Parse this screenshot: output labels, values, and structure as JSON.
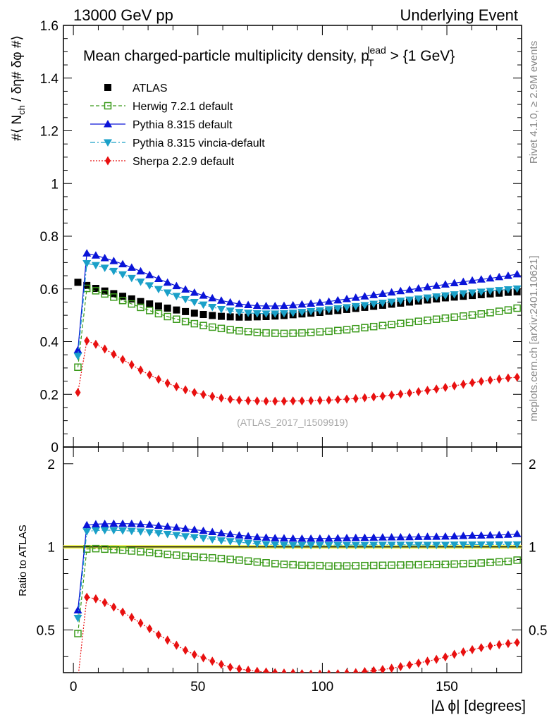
{
  "header": {
    "left": "13000 GeV pp",
    "right": "Underlying Event"
  },
  "side_labels": {
    "rivet": "Rivet 4.1.0, ≥ 2.9M events",
    "mcplots": "mcplots.cern.ch [arXiv:2401.10621]"
  },
  "colors": {
    "atlas": "#000000",
    "herwig": "#3a9a1a",
    "pythia": "#0a14d8",
    "vincia": "#1aa0c8",
    "sherpa": "#e81010",
    "ratio_band": "#f0f55a"
  },
  "chart_data": [
    {
      "id": "main",
      "type": "line",
      "title": "Mean charged-particle multiplicity density, p_T^lead > {1 GeV}",
      "title_parts": {
        "main": "Mean charged-particle multiplicity density, p",
        "sup": "lead",
        "sub": "T",
        "tail": " > {1 GeV}"
      },
      "ylabel": "#⟨ N_ch / δη# δφ #⟩",
      "ylabel_parts": {
        "a": "#⟨ N",
        "sub": "ch",
        "b": " / δη# δφ #⟩"
      },
      "xlabel": "",
      "ylim": [
        0,
        1.6
      ],
      "xlim": [
        -4,
        180
      ],
      "yticks": [
        0,
        0.2,
        0.4,
        0.6,
        0.8,
        1,
        1.2,
        1.4,
        1.6
      ],
      "ytick_labels": [
        "0",
        "0.2",
        "0.4",
        "0.6",
        "0.8",
        "1",
        "1.2",
        "1.4",
        "1.6"
      ],
      "watermark": "(ATLAS_2017_I1509919)",
      "legend_position": "top-left",
      "x": [
        1.8,
        5.4,
        9,
        12.6,
        16.2,
        19.8,
        23.4,
        27,
        30.6,
        34.2,
        37.8,
        41.4,
        45,
        48.6,
        52.2,
        55.8,
        59.4,
        63,
        66.6,
        70.2,
        73.8,
        77.4,
        81,
        84.6,
        88.2,
        91.8,
        95.4,
        99,
        102.6,
        106.2,
        109.8,
        113.4,
        117,
        120.6,
        124.2,
        127.8,
        131.4,
        135,
        138.6,
        142.2,
        145.8,
        149.4,
        153,
        156.6,
        160.2,
        163.8,
        167.4,
        171,
        174.6,
        178.2
      ],
      "series": [
        {
          "name": "ATLAS",
          "key": "atlas",
          "marker": "square-filled",
          "line": "none",
          "values": [
            0.625,
            0.613,
            0.602,
            0.592,
            0.582,
            0.572,
            0.562,
            0.552,
            0.543,
            0.535,
            0.527,
            0.52,
            0.514,
            0.508,
            0.503,
            0.499,
            0.496,
            0.494,
            0.493,
            0.493,
            0.494,
            0.495,
            0.497,
            0.499,
            0.502,
            0.505,
            0.508,
            0.511,
            0.515,
            0.518,
            0.522,
            0.526,
            0.53,
            0.534,
            0.538,
            0.542,
            0.546,
            0.55,
            0.554,
            0.558,
            0.562,
            0.566,
            0.569,
            0.572,
            0.575,
            0.578,
            0.581,
            0.584,
            0.587,
            0.589
          ]
        },
        {
          "name": "Herwig 7.2.1 default",
          "key": "herwig",
          "marker": "square-open",
          "line": "dashed",
          "values": [
            0.303,
            0.602,
            0.593,
            0.581,
            0.569,
            0.556,
            0.543,
            0.53,
            0.518,
            0.506,
            0.495,
            0.485,
            0.476,
            0.468,
            0.461,
            0.455,
            0.45,
            0.445,
            0.441,
            0.438,
            0.435,
            0.433,
            0.432,
            0.431,
            0.432,
            0.433,
            0.435,
            0.437,
            0.439,
            0.442,
            0.445,
            0.449,
            0.453,
            0.457,
            0.461,
            0.465,
            0.469,
            0.473,
            0.477,
            0.481,
            0.485,
            0.489,
            0.493,
            0.497,
            0.501,
            0.505,
            0.51,
            0.515,
            0.52,
            0.527
          ]
        },
        {
          "name": "Pythia 8.315 default",
          "key": "pythia",
          "marker": "triangle-up",
          "line": "solid",
          "values": [
            0.368,
            0.735,
            0.727,
            0.717,
            0.706,
            0.694,
            0.681,
            0.667,
            0.653,
            0.638,
            0.624,
            0.611,
            0.598,
            0.586,
            0.575,
            0.565,
            0.556,
            0.549,
            0.543,
            0.539,
            0.536,
            0.535,
            0.535,
            0.536,
            0.538,
            0.541,
            0.544,
            0.548,
            0.552,
            0.557,
            0.562,
            0.567,
            0.572,
            0.577,
            0.582,
            0.587,
            0.592,
            0.597,
            0.602,
            0.607,
            0.612,
            0.617,
            0.622,
            0.627,
            0.632,
            0.636,
            0.64,
            0.645,
            0.65,
            0.656
          ]
        },
        {
          "name": "Pythia 8.315 vincia-default",
          "key": "vincia",
          "marker": "triangle-down",
          "line": "dashdot",
          "values": [
            0.345,
            0.697,
            0.69,
            0.68,
            0.668,
            0.655,
            0.641,
            0.627,
            0.613,
            0.599,
            0.586,
            0.573,
            0.561,
            0.55,
            0.54,
            0.531,
            0.523,
            0.517,
            0.512,
            0.509,
            0.507,
            0.506,
            0.506,
            0.507,
            0.509,
            0.512,
            0.515,
            0.518,
            0.522,
            0.526,
            0.53,
            0.534,
            0.538,
            0.543,
            0.547,
            0.551,
            0.555,
            0.559,
            0.563,
            0.567,
            0.571,
            0.575,
            0.579,
            0.583,
            0.586,
            0.589,
            0.592,
            0.595,
            0.598,
            0.601
          ]
        },
        {
          "name": "Sherpa 2.2.9 default",
          "key": "sherpa",
          "marker": "diamond",
          "line": "dotted",
          "values": [
            0.207,
            0.403,
            0.39,
            0.372,
            0.352,
            0.332,
            0.312,
            0.292,
            0.274,
            0.257,
            0.242,
            0.229,
            0.217,
            0.207,
            0.199,
            0.192,
            0.186,
            0.181,
            0.178,
            0.176,
            0.175,
            0.174,
            0.174,
            0.174,
            0.175,
            0.175,
            0.176,
            0.177,
            0.178,
            0.18,
            0.182,
            0.184,
            0.187,
            0.19,
            0.193,
            0.197,
            0.201,
            0.205,
            0.21,
            0.215,
            0.22,
            0.226,
            0.232,
            0.238,
            0.244,
            0.249,
            0.254,
            0.258,
            0.262,
            0.265
          ]
        }
      ]
    },
    {
      "id": "ratio",
      "type": "line",
      "title": "",
      "ylabel": "Ratio to ATLAS",
      "xlabel": "|Δ ϕ| [degrees]",
      "ylim": [
        0.35,
        2.3
      ],
      "xlim": [
        -4,
        180
      ],
      "yticks": [
        0.5,
        1,
        2
      ],
      "ytick_labels": [
        "0.5",
        "1",
        "2"
      ],
      "xticks": [
        0,
        50,
        100,
        150
      ],
      "xtick_labels": [
        "0",
        "50",
        "100",
        "150"
      ],
      "band": [
        0.985,
        1.015
      ],
      "reference": 1,
      "x": [
        1.8,
        5.4,
        9,
        12.6,
        16.2,
        19.8,
        23.4,
        27,
        30.6,
        34.2,
        37.8,
        41.4,
        45,
        48.6,
        52.2,
        55.8,
        59.4,
        63,
        66.6,
        70.2,
        73.8,
        77.4,
        81,
        84.6,
        88.2,
        91.8,
        95.4,
        99,
        102.6,
        106.2,
        109.8,
        113.4,
        117,
        120.6,
        124.2,
        127.8,
        131.4,
        135,
        138.6,
        142.2,
        145.8,
        149.4,
        153,
        156.6,
        160.2,
        163.8,
        167.4,
        171,
        174.6,
        178.2
      ],
      "series": [
        {
          "name": "Herwig 7.2.1 default",
          "key": "herwig",
          "marker": "square-open",
          "line": "dashed",
          "values": [
            0.485,
            0.982,
            0.985,
            0.981,
            0.977,
            0.972,
            0.966,
            0.96,
            0.954,
            0.946,
            0.939,
            0.933,
            0.926,
            0.921,
            0.916,
            0.912,
            0.907,
            0.901,
            0.895,
            0.888,
            0.881,
            0.875,
            0.869,
            0.864,
            0.861,
            0.857,
            0.856,
            0.855,
            0.852,
            0.853,
            0.853,
            0.854,
            0.855,
            0.856,
            0.857,
            0.858,
            0.859,
            0.86,
            0.861,
            0.862,
            0.863,
            0.864,
            0.866,
            0.869,
            0.871,
            0.874,
            0.878,
            0.882,
            0.886,
            0.895
          ]
        },
        {
          "name": "Pythia 8.315 default",
          "key": "pythia",
          "marker": "triangle-up",
          "line": "solid",
          "values": [
            0.589,
            1.199,
            1.208,
            1.211,
            1.213,
            1.213,
            1.212,
            1.208,
            1.203,
            1.193,
            1.184,
            1.175,
            1.163,
            1.154,
            1.143,
            1.132,
            1.121,
            1.111,
            1.101,
            1.093,
            1.085,
            1.081,
            1.076,
            1.074,
            1.072,
            1.071,
            1.071,
            1.072,
            1.072,
            1.075,
            1.077,
            1.078,
            1.079,
            1.081,
            1.082,
            1.083,
            1.084,
            1.085,
            1.087,
            1.088,
            1.089,
            1.09,
            1.093,
            1.096,
            1.099,
            1.1,
            1.102,
            1.104,
            1.107,
            1.114
          ]
        },
        {
          "name": "Pythia 8.315 vincia-default",
          "key": "vincia",
          "marker": "triangle-down",
          "line": "dashdot",
          "values": [
            0.552,
            1.137,
            1.146,
            1.149,
            1.148,
            1.145,
            1.141,
            1.136,
            1.129,
            1.12,
            1.112,
            1.102,
            1.091,
            1.083,
            1.074,
            1.064,
            1.054,
            1.047,
            1.039,
            1.032,
            1.026,
            1.022,
            1.018,
            1.016,
            1.014,
            1.014,
            1.014,
            1.014,
            1.014,
            1.015,
            1.015,
            1.015,
            1.015,
            1.017,
            1.017,
            1.017,
            1.017,
            1.016,
            1.016,
            1.016,
            1.016,
            1.016,
            1.018,
            1.019,
            1.019,
            1.019,
            1.019,
            1.019,
            1.019,
            1.02
          ]
        },
        {
          "name": "Sherpa 2.2.9 default",
          "key": "sherpa",
          "marker": "diamond",
          "line": "dotted",
          "values": [
            0.331,
            0.657,
            0.648,
            0.628,
            0.605,
            0.58,
            0.555,
            0.529,
            0.505,
            0.48,
            0.459,
            0.44,
            0.422,
            0.407,
            0.396,
            0.385,
            0.375,
            0.366,
            0.361,
            0.357,
            0.354,
            0.352,
            0.35,
            0.349,
            0.349,
            0.347,
            0.346,
            0.346,
            0.346,
            0.347,
            0.349,
            0.35,
            0.353,
            0.356,
            0.359,
            0.363,
            0.368,
            0.373,
            0.379,
            0.385,
            0.391,
            0.399,
            0.408,
            0.416,
            0.424,
            0.431,
            0.437,
            0.442,
            0.446,
            0.45
          ]
        }
      ]
    }
  ]
}
